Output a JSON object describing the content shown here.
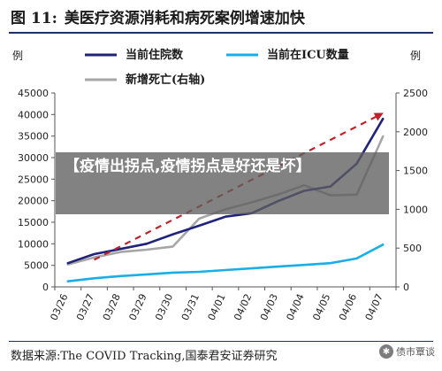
{
  "header": {
    "figure_number": "图 11:",
    "title": "美医疗资源消耗和病死案例增速加快"
  },
  "units": {
    "left": "例",
    "right": "例"
  },
  "overlay": {
    "text": "【疫情出拐点,疫情拐点是好还是坏】"
  },
  "footer": {
    "source": "数据来源:The COVID Tracking,国泰君安证券研究",
    "watermark": "债市覃谈",
    "watermark_icon": "wechat-icon"
  },
  "colors": {
    "hospitalized": "#1f237a",
    "icu": "#19aee6",
    "new_deaths": "#a6a6a6",
    "trend_arrow": "#c0202a"
  },
  "chart_data": {
    "type": "line",
    "title": "美医疗资源消耗和病死案例增速加快",
    "x": [
      "03/26",
      "03/27",
      "03/28",
      "03/29",
      "03/30",
      "03/31",
      "04/01",
      "04/02",
      "04/03",
      "04/04",
      "04/05",
      "04/06",
      "04/07"
    ],
    "series": [
      {
        "name": "当前住院数",
        "axis": "left",
        "color": "#1f237a",
        "values": [
          5500,
          7600,
          8800,
          10000,
          12200,
          14200,
          16300,
          17100,
          19900,
          22300,
          23300,
          28600,
          39000
        ]
      },
      {
        "name": "当前在ICU数量",
        "axis": "left",
        "color": "#19aee6",
        "values": [
          1300,
          2000,
          2500,
          2900,
          3300,
          3500,
          3900,
          4300,
          4700,
          5100,
          5500,
          6600,
          9800
        ]
      },
      {
        "name": "新增死亡(右轴)",
        "axis": "right",
        "color": "#a6a6a6",
        "values": [
          290,
          380,
          450,
          480,
          520,
          880,
          1000,
          1090,
          1190,
          1310,
          1180,
          1190,
          1940
        ]
      }
    ],
    "y_left": {
      "min": 0,
      "max": 45000,
      "ticks": [
        "0",
        "5000",
        "10000",
        "15000",
        "20000",
        "25000",
        "30000",
        "35000",
        "40000",
        "45000"
      ]
    },
    "y_right": {
      "min": 0,
      "max": 2500,
      "ticks": [
        "0",
        "500",
        "1000",
        "1500",
        "2000",
        "2500"
      ]
    },
    "trend_arrow": {
      "from": {
        "x": "03/27",
        "y_right": 350
      },
      "to": {
        "x": "04/07",
        "y_right": 2250
      }
    },
    "legend_position": "top-center",
    "grid": false
  }
}
